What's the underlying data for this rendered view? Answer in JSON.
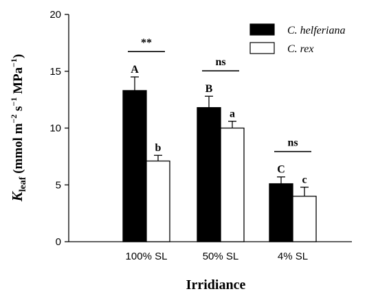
{
  "chart_data": {
    "type": "bar",
    "xlabel": "Irridiance",
    "ylabel_parts": {
      "k": "K",
      "sub": "leaf",
      "u1": " (mmol m",
      "e1": "−2",
      "u2": " s",
      "e2": "−1",
      "u3": " MPa",
      "e3": "−1",
      "u4": ")"
    },
    "ylim": [
      0,
      20
    ],
    "yticks": [
      "0",
      "5",
      "10",
      "15",
      "20"
    ],
    "categories": [
      "100% SL",
      "50% SL",
      "4% SL"
    ],
    "series": [
      {
        "name": "C. helferiana",
        "fill": "#000000",
        "values": [
          13.3,
          11.8,
          5.1
        ],
        "errors": [
          1.2,
          1.0,
          0.6
        ],
        "letters": [
          "A",
          "B",
          "C"
        ]
      },
      {
        "name": "C. rex",
        "fill": "#ffffff",
        "values": [
          7.1,
          10.0,
          4.0
        ],
        "errors": [
          0.5,
          0.6,
          0.8
        ],
        "letters": [
          "b",
          "a",
          "c"
        ]
      }
    ],
    "significance": [
      "**",
      "ns",
      "ns"
    ],
    "legend_position": "top-right",
    "grid": false
  }
}
